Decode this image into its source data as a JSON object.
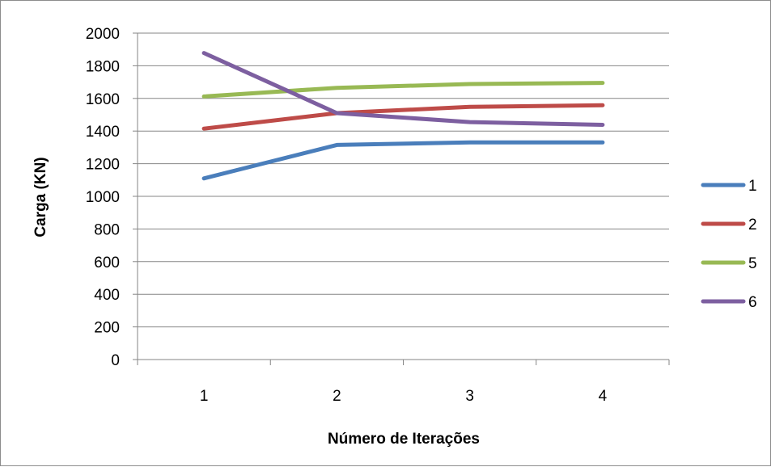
{
  "chart_data": {
    "type": "line",
    "title": "",
    "xlabel": "Número de Iterações",
    "ylabel": "Carga (KN)",
    "categories": [
      "1",
      "2",
      "3",
      "4"
    ],
    "ylim": [
      0,
      2000
    ],
    "yticks": [
      0,
      200,
      400,
      600,
      800,
      1000,
      1200,
      1400,
      1600,
      1800,
      2000
    ],
    "grid": true,
    "legend_position": "right",
    "series": [
      {
        "name": "1",
        "color": "#4a7ebb",
        "values": [
          1110,
          1315,
          1330,
          1330
        ]
      },
      {
        "name": "2",
        "color": "#be4b48",
        "values": [
          1415,
          1510,
          1548,
          1558
        ]
      },
      {
        "name": "5",
        "color": "#98b954",
        "values": [
          1612,
          1665,
          1688,
          1695
        ]
      },
      {
        "name": "6",
        "color": "#7d5fa0",
        "values": [
          1878,
          1510,
          1455,
          1438
        ]
      }
    ]
  }
}
